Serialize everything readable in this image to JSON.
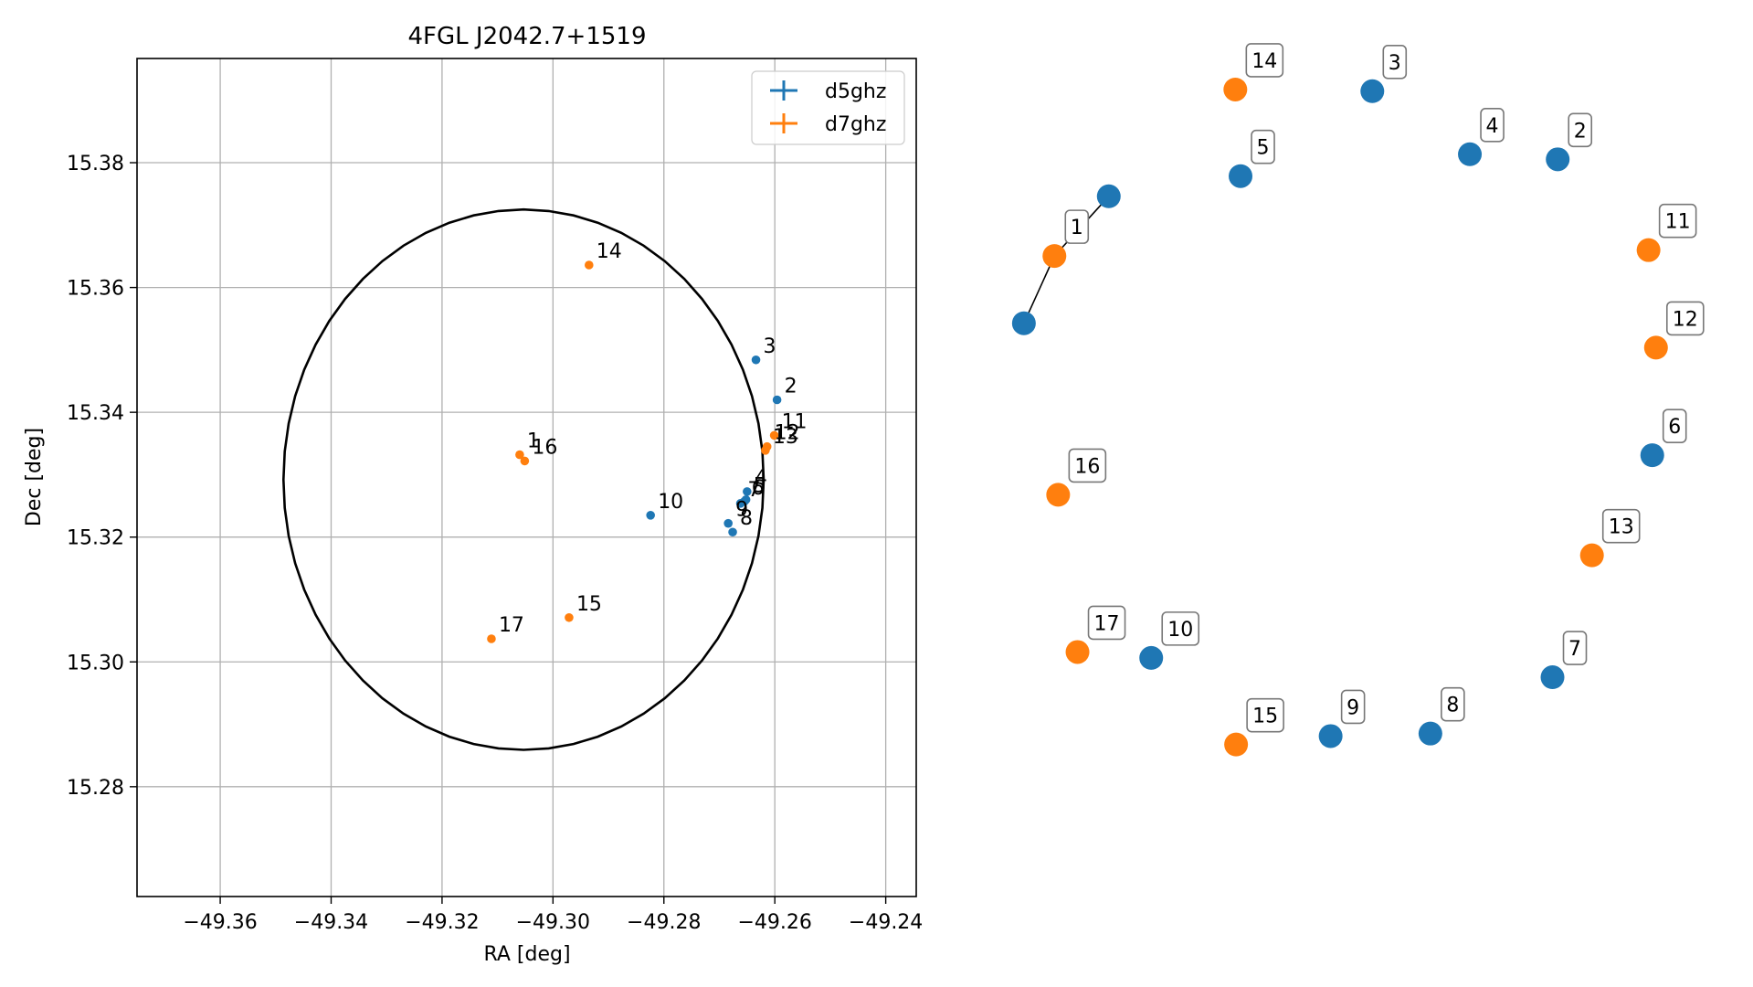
{
  "chart_data": [
    {
      "type": "scatter",
      "title": "4FGL J2042.7+1519",
      "xlabel": "RA [deg]",
      "ylabel": "Dec [deg]",
      "xlim": [
        -49.375,
        -49.2345
      ],
      "ylim": [
        15.2624,
        15.3967
      ],
      "grid": true,
      "x_ticks": [
        -49.36,
        -49.34,
        -49.32,
        -49.3,
        -49.28,
        -49.26,
        -49.24
      ],
      "x_tick_labels": [
        "−49.36",
        "−49.34",
        "−49.32",
        "−49.30",
        "−49.28",
        "−49.26",
        "−49.24"
      ],
      "y_ticks": [
        15.28,
        15.3,
        15.32,
        15.34,
        15.36,
        15.38
      ],
      "y_tick_labels": [
        "15.28",
        "15.30",
        "15.32",
        "15.34",
        "15.36",
        "15.38"
      ],
      "legend": {
        "placement": "upper-right",
        "entries": [
          {
            "name": "d5ghz",
            "color": "#1f77b4"
          },
          {
            "name": "d7ghz",
            "color": "#ff7f0e"
          }
        ]
      },
      "circle": {
        "center": [
          -49.3053,
          15.3292
        ],
        "radius": 0.0433,
        "color": "#000000"
      },
      "series": [
        {
          "name": "d5ghz",
          "color": "#1f77b4",
          "points": [
            {
              "label": "2",
              "x": -49.2596,
              "y": 15.342
            },
            {
              "label": "3",
              "x": -49.2634,
              "y": 15.3484
            },
            {
              "label": "4",
              "x": -49.265,
              "y": 15.3273
            },
            {
              "label": "5",
              "x": -49.2652,
              "y": 15.326
            },
            {
              "label": "6",
              "x": -49.2655,
              "y": 15.3257
            },
            {
              "label": "7",
              "x": -49.2662,
              "y": 15.3254
            },
            {
              "label": "8",
              "x": -49.2676,
              "y": 15.3208
            },
            {
              "label": "9",
              "x": -49.2684,
              "y": 15.3222
            },
            {
              "label": "10",
              "x": -49.2824,
              "y": 15.3235
            }
          ]
        },
        {
          "name": "d7ghz",
          "color": "#ff7f0e",
          "points": [
            {
              "label": "1",
              "x": -49.306,
              "y": 15.3332
            },
            {
              "label": "11",
              "x": -49.2601,
              "y": 15.3363
            },
            {
              "label": "12",
              "x": -49.2614,
              "y": 15.3345
            },
            {
              "label": "13",
              "x": -49.2617,
              "y": 15.3339
            },
            {
              "label": "14",
              "x": -49.2935,
              "y": 15.3636
            },
            {
              "label": "15",
              "x": -49.2971,
              "y": 15.3071
            },
            {
              "label": "16",
              "x": -49.3051,
              "y": 15.3322
            },
            {
              "label": "17",
              "x": -49.3111,
              "y": 15.3037
            }
          ]
        }
      ]
    },
    {
      "type": "scatter",
      "title": "",
      "axes": false,
      "markers": [
        {
          "label": "1",
          "series": "d7ghz",
          "color": "#ff7f0e",
          "x": 0.085,
          "y": 0.739
        },
        {
          "label": "2",
          "series": "d5ghz",
          "color": "#1f77b4",
          "x": 0.761,
          "y": 0.854
        },
        {
          "label": "3",
          "series": "d5ghz",
          "color": "#1f77b4",
          "x": 0.512,
          "y": 0.935
        },
        {
          "label": "4",
          "series": "d5ghz",
          "color": "#1f77b4",
          "x": 0.643,
          "y": 0.86
        },
        {
          "label": "5",
          "series": "d5ghz",
          "color": "#1f77b4",
          "x": 0.335,
          "y": 0.834
        },
        {
          "label": "6",
          "series": "d5ghz",
          "color": "#1f77b4",
          "x": 0.888,
          "y": 0.502
        },
        {
          "label": "7",
          "series": "d5ghz",
          "color": "#1f77b4",
          "x": 0.754,
          "y": 0.238
        },
        {
          "label": "8",
          "series": "d5ghz",
          "color": "#1f77b4",
          "x": 0.59,
          "y": 0.171
        },
        {
          "label": "9",
          "series": "d5ghz",
          "color": "#1f77b4",
          "x": 0.456,
          "y": 0.168
        },
        {
          "label": "10",
          "series": "d5ghz",
          "color": "#1f77b4",
          "x": 0.215,
          "y": 0.261
        },
        {
          "label": "11",
          "series": "d7ghz",
          "color": "#ff7f0e",
          "x": 0.883,
          "y": 0.746
        },
        {
          "label": "12",
          "series": "d7ghz",
          "color": "#ff7f0e",
          "x": 0.893,
          "y": 0.63
        },
        {
          "label": "13",
          "series": "d7ghz",
          "color": "#ff7f0e",
          "x": 0.807,
          "y": 0.383
        },
        {
          "label": "14",
          "series": "d7ghz",
          "color": "#ff7f0e",
          "x": 0.328,
          "y": 0.937
        },
        {
          "label": "15",
          "series": "d7ghz",
          "color": "#ff7f0e",
          "x": 0.329,
          "y": 0.158
        },
        {
          "label": "16",
          "series": "d7ghz",
          "color": "#ff7f0e",
          "x": 0.09,
          "y": 0.455
        },
        {
          "label": "17",
          "series": "d7ghz",
          "color": "#ff7f0e",
          "x": 0.116,
          "y": 0.268
        }
      ],
      "extra_markers": [
        {
          "color": "#1f77b4",
          "x": 0.158,
          "y": 0.81
        },
        {
          "color": "#1f77b4",
          "x": 0.044,
          "y": 0.659
        }
      ],
      "links": [
        {
          "from": [
            0.158,
            0.81
          ],
          "to": [
            0.085,
            0.739
          ]
        },
        {
          "from": [
            0.085,
            0.739
          ],
          "to": [
            0.044,
            0.659
          ]
        }
      ]
    }
  ]
}
